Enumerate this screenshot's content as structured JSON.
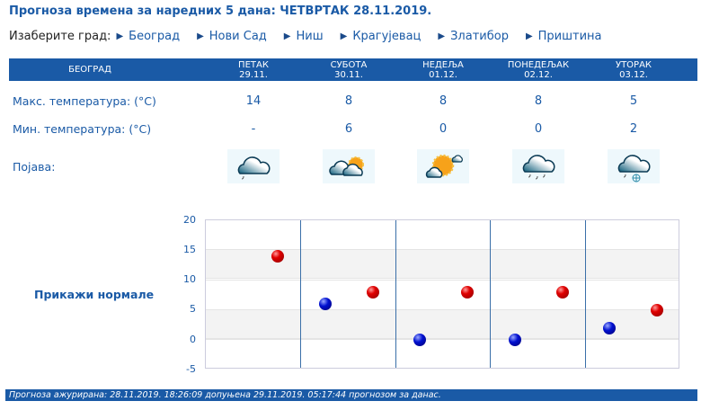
{
  "title": "Прогноза времена за наредних 5 дана: ЧЕТВРТАК  28.11.2019.",
  "city_selector": {
    "label": "Изаберите град:",
    "cities": [
      "Београд",
      "Нови Сад",
      "Ниш",
      "Крагујевац",
      "Златибор",
      "Приштина"
    ]
  },
  "table": {
    "city": "БЕОГРАД",
    "days": [
      {
        "name": "ПЕТАК",
        "date": "29.11.",
        "max": "14",
        "min": "-",
        "icon": "cloud-light-rain-icon"
      },
      {
        "name": "СУБОТА",
        "date": "30.11.",
        "max": "8",
        "min": "6",
        "icon": "partly-cloudy-icon"
      },
      {
        "name": "НЕДЕЉА",
        "date": "01.12.",
        "max": "8",
        "min": "0",
        "icon": "mostly-sunny-icon"
      },
      {
        "name": "ПОНЕДЕЉАК",
        "date": "02.12.",
        "max": "8",
        "min": "0",
        "icon": "cloud-rain-icon"
      },
      {
        "name": "УТОРАК",
        "date": "03.12.",
        "max": "5",
        "min": "2",
        "icon": "cloud-rain-snow-icon"
      }
    ],
    "rows": {
      "max_label": "Макс. температура: (°C)",
      "min_label": "Мин. температура: (°C)",
      "phenomenon_label": "Појава:"
    }
  },
  "chart": {
    "show_normals": "Прикажи нормале",
    "y_ticks": [
      "20",
      "15",
      "10",
      "5",
      "0",
      "-5"
    ]
  },
  "chart_data": {
    "type": "scatter",
    "categories": [
      "29.11.",
      "30.11.",
      "01.12.",
      "02.12.",
      "03.12."
    ],
    "series": [
      {
        "name": "Макс. температура",
        "color": "#e00000",
        "values": [
          14,
          8,
          8,
          8,
          5
        ]
      },
      {
        "name": "Мин. температура",
        "color": "#0010d0",
        "values": [
          null,
          6,
          0,
          0,
          2
        ]
      }
    ],
    "ylim": [
      -5,
      20
    ],
    "yticks": [
      -5,
      0,
      5,
      10,
      15,
      20
    ],
    "grid": true
  },
  "footer": "Прогноза ажурирана:  28.11.2019. 18:26:09 допуњена 29.11.2019. 05:17:44 прогнозом за данас.",
  "colors": {
    "accent": "#1a5aa6"
  }
}
